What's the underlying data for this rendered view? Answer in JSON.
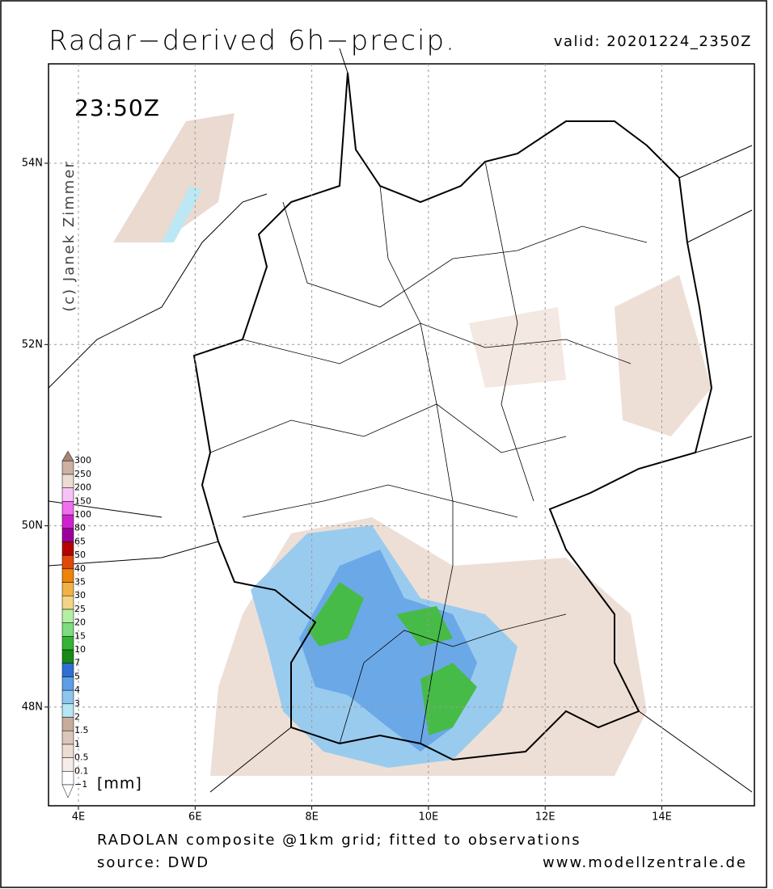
{
  "header": {
    "title": "Radar−derived 6h−precip.",
    "valid": "valid: 20201224_2350Z"
  },
  "map": {
    "time_label": "23:50Z",
    "copyright": "(c) Janek Zimmer",
    "lat_ticks": [
      "54N",
      "52N",
      "50N",
      "48N"
    ],
    "lon_ticks": [
      "4E",
      "6E",
      "8E",
      "10E",
      "12E",
      "14E"
    ]
  },
  "legend": {
    "levels": [
      "−1",
      "0.1",
      "0.5",
      "1",
      "1.5",
      "2",
      "3",
      "4",
      "5",
      "7",
      "10",
      "15",
      "20",
      "25",
      "30",
      "35",
      "40",
      "50",
      "65",
      "80",
      "100",
      "150",
      "200",
      "250",
      "300"
    ],
    "colors": [
      "#ffffff",
      "#f6ede8",
      "#ecdcd2",
      "#dcc6b9",
      "#c9ab9c",
      "#b4e6f3",
      "#8ec6ee",
      "#5c9fe6",
      "#2f6fd6",
      "#178a17",
      "#34b434",
      "#7fdb7f",
      "#b3efa3",
      "#f2d487",
      "#f1b245",
      "#ef8208",
      "#e04a08",
      "#b80000",
      "#9a009a",
      "#cf22cf",
      "#ef6fef",
      "#f7c3f7",
      "#eadbd3",
      "#cdb1a3"
    ],
    "below_color": "#ffffff",
    "above_color": "#a48474",
    "unit": "[mm]"
  },
  "footer": {
    "line1": "RADOLAN composite @1km grid; fitted to observations",
    "source": "source: DWD",
    "website": "www.modellzentrale.de"
  }
}
